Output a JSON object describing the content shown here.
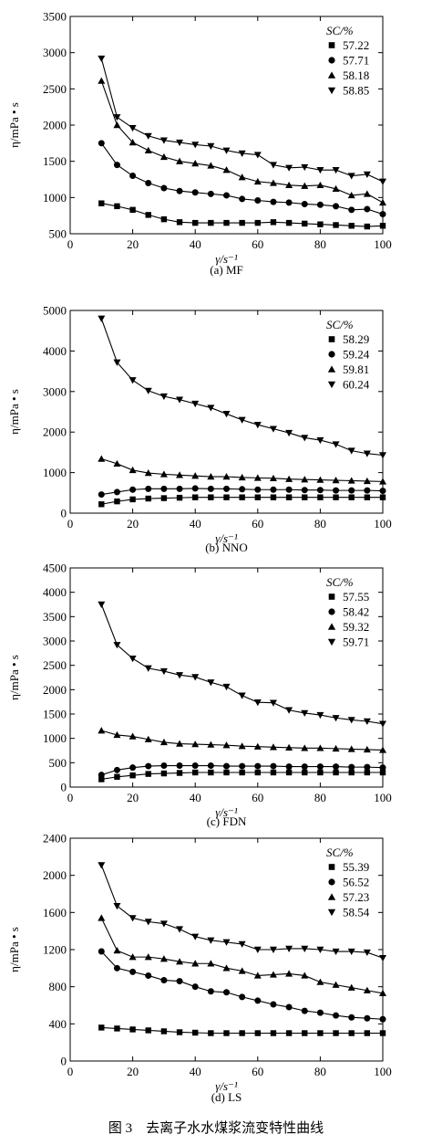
{
  "figure_caption": "图 3　去离子水水煤浆流变特性曲线",
  "chart_data": [
    {
      "type": "line",
      "caption": "(a) MF",
      "xlabel": "γ/s⁻¹",
      "ylabel": "η/mPa • s",
      "xlim": [
        0,
        100
      ],
      "ylim": [
        500,
        3500
      ],
      "xticks": [
        0,
        20,
        40,
        60,
        80,
        100
      ],
      "yticks": [
        500,
        1000,
        1500,
        2000,
        2500,
        3000,
        3500
      ],
      "legend_title": "SC/%",
      "legend_position": "top-right",
      "series": [
        {
          "name": "57.22",
          "marker": "square",
          "x": [
            10,
            15,
            20,
            25,
            30,
            35,
            40,
            45,
            50,
            55,
            60,
            65,
            70,
            75,
            80,
            85,
            90,
            95,
            100
          ],
          "y": [
            920,
            880,
            830,
            760,
            700,
            660,
            650,
            650,
            650,
            650,
            650,
            660,
            650,
            640,
            630,
            620,
            610,
            600,
            610
          ]
        },
        {
          "name": "57.71",
          "marker": "circle",
          "x": [
            10,
            15,
            20,
            25,
            30,
            35,
            40,
            45,
            50,
            55,
            60,
            65,
            70,
            75,
            80,
            85,
            90,
            95,
            100
          ],
          "y": [
            1750,
            1450,
            1300,
            1200,
            1130,
            1090,
            1070,
            1050,
            1030,
            980,
            960,
            940,
            930,
            910,
            900,
            880,
            830,
            840,
            770
          ]
        },
        {
          "name": "58.18",
          "marker": "triangle-up",
          "x": [
            10,
            15,
            20,
            25,
            30,
            35,
            40,
            45,
            50,
            55,
            60,
            65,
            70,
            75,
            80,
            85,
            90,
            95,
            100
          ],
          "y": [
            2610,
            2000,
            1760,
            1650,
            1560,
            1500,
            1470,
            1440,
            1380,
            1280,
            1220,
            1200,
            1170,
            1160,
            1170,
            1120,
            1030,
            1050,
            930
          ]
        },
        {
          "name": "58.85",
          "marker": "triangle-down",
          "x": [
            10,
            15,
            20,
            25,
            30,
            35,
            40,
            45,
            50,
            55,
            60,
            65,
            70,
            75,
            80,
            85,
            90,
            95,
            100
          ],
          "y": [
            2920,
            2110,
            1960,
            1850,
            1790,
            1760,
            1730,
            1710,
            1650,
            1610,
            1590,
            1450,
            1410,
            1420,
            1380,
            1380,
            1300,
            1320,
            1220
          ]
        }
      ]
    },
    {
      "type": "line",
      "caption": "(b) NNO",
      "xlabel": "γ/s⁻¹",
      "ylabel": "η/mPa • s",
      "xlim": [
        0,
        100
      ],
      "ylim": [
        0,
        5000
      ],
      "xticks": [
        0,
        20,
        40,
        60,
        80,
        100
      ],
      "yticks": [
        0,
        1000,
        2000,
        3000,
        4000,
        5000
      ],
      "legend_title": "SC/%",
      "legend_position": "top-right",
      "series": [
        {
          "name": "58.29",
          "marker": "square",
          "x": [
            10,
            15,
            20,
            25,
            30,
            35,
            40,
            45,
            50,
            55,
            60,
            65,
            70,
            75,
            80,
            85,
            90,
            95,
            100
          ],
          "y": [
            220,
            290,
            340,
            360,
            370,
            380,
            390,
            390,
            390,
            390,
            390,
            390,
            390,
            390,
            390,
            390,
            390,
            390,
            390
          ]
        },
        {
          "name": "59.24",
          "marker": "circle",
          "x": [
            10,
            15,
            20,
            25,
            30,
            35,
            40,
            45,
            50,
            55,
            60,
            65,
            70,
            75,
            80,
            85,
            90,
            95,
            100
          ],
          "y": [
            460,
            520,
            580,
            600,
            600,
            600,
            610,
            600,
            600,
            590,
            580,
            580,
            580,
            570,
            570,
            560,
            560,
            560,
            550
          ]
        },
        {
          "name": "59.81",
          "marker": "triangle-up",
          "x": [
            10,
            15,
            20,
            25,
            30,
            35,
            40,
            45,
            50,
            55,
            60,
            65,
            70,
            75,
            80,
            85,
            90,
            95,
            100
          ],
          "y": [
            1340,
            1220,
            1060,
            990,
            960,
            940,
            920,
            900,
            900,
            880,
            870,
            860,
            840,
            830,
            820,
            810,
            800,
            790,
            780
          ]
        },
        {
          "name": "60.24",
          "marker": "triangle-down",
          "x": [
            10,
            15,
            20,
            25,
            30,
            35,
            40,
            45,
            50,
            55,
            60,
            65,
            70,
            75,
            80,
            85,
            90,
            95,
            100
          ],
          "y": [
            4800,
            3720,
            3280,
            3020,
            2880,
            2800,
            2700,
            2600,
            2450,
            2300,
            2180,
            2080,
            1980,
            1860,
            1800,
            1700,
            1540,
            1470,
            1430
          ]
        }
      ]
    },
    {
      "type": "line",
      "caption": "(c) FDN",
      "xlabel": "γ/s⁻¹",
      "ylabel": "η/mPa • s",
      "xlim": [
        0,
        100
      ],
      "ylim": [
        0,
        4500
      ],
      "xticks": [
        0,
        20,
        40,
        60,
        80,
        100
      ],
      "yticks": [
        0,
        500,
        1000,
        1500,
        2000,
        2500,
        3000,
        3500,
        4000,
        4500
      ],
      "legend_title": "SC/%",
      "legend_position": "top-right",
      "series": [
        {
          "name": "57.55",
          "marker": "square",
          "x": [
            10,
            15,
            20,
            25,
            30,
            35,
            40,
            45,
            50,
            55,
            60,
            65,
            70,
            75,
            80,
            85,
            90,
            95,
            100
          ],
          "y": [
            160,
            210,
            240,
            270,
            280,
            290,
            300,
            300,
            300,
            300,
            300,
            300,
            300,
            300,
            300,
            300,
            300,
            300,
            300
          ]
        },
        {
          "name": "58.42",
          "marker": "circle",
          "x": [
            10,
            15,
            20,
            25,
            30,
            35,
            40,
            45,
            50,
            55,
            60,
            65,
            70,
            75,
            80,
            85,
            90,
            95,
            100
          ],
          "y": [
            250,
            350,
            400,
            430,
            440,
            440,
            440,
            440,
            430,
            430,
            430,
            430,
            420,
            420,
            420,
            420,
            410,
            410,
            400
          ]
        },
        {
          "name": "59.32",
          "marker": "triangle-up",
          "x": [
            10,
            15,
            20,
            25,
            30,
            35,
            40,
            45,
            50,
            55,
            60,
            65,
            70,
            75,
            80,
            85,
            90,
            95,
            100
          ],
          "y": [
            1160,
            1070,
            1040,
            980,
            920,
            890,
            880,
            870,
            860,
            840,
            830,
            820,
            810,
            800,
            800,
            790,
            780,
            770,
            760
          ]
        },
        {
          "name": "59.71",
          "marker": "triangle-down",
          "x": [
            10,
            15,
            20,
            25,
            30,
            35,
            40,
            45,
            50,
            55,
            60,
            65,
            70,
            75,
            80,
            85,
            90,
            95,
            100
          ],
          "y": [
            3750,
            2920,
            2640,
            2440,
            2380,
            2300,
            2260,
            2150,
            2060,
            1880,
            1740,
            1730,
            1580,
            1520,
            1480,
            1420,
            1380,
            1350,
            1300
          ]
        }
      ]
    },
    {
      "type": "line",
      "caption": "(d) LS",
      "xlabel": "γ/s⁻¹",
      "ylabel": "η/mPa • s",
      "xlim": [
        0,
        100
      ],
      "ylim": [
        0,
        2400
      ],
      "xticks": [
        0,
        20,
        40,
        60,
        80,
        100
      ],
      "yticks": [
        0,
        400,
        800,
        1200,
        1600,
        2000,
        2400
      ],
      "legend_title": "SC/%",
      "legend_position": "top-right",
      "series": [
        {
          "name": "55.39",
          "marker": "square",
          "x": [
            10,
            15,
            20,
            25,
            30,
            35,
            40,
            45,
            50,
            55,
            60,
            65,
            70,
            75,
            80,
            85,
            90,
            95,
            100
          ],
          "y": [
            360,
            350,
            340,
            330,
            320,
            310,
            305,
            300,
            300,
            300,
            300,
            300,
            300,
            300,
            300,
            300,
            300,
            300,
            300
          ]
        },
        {
          "name": "56.52",
          "marker": "circle",
          "x": [
            10,
            15,
            20,
            25,
            30,
            35,
            40,
            45,
            50,
            55,
            60,
            65,
            70,
            75,
            80,
            85,
            90,
            95,
            100
          ],
          "y": [
            1180,
            1000,
            960,
            920,
            870,
            860,
            800,
            750,
            740,
            690,
            650,
            610,
            580,
            540,
            520,
            490,
            470,
            460,
            450
          ]
        },
        {
          "name": "57.23",
          "marker": "triangle-up",
          "x": [
            10,
            15,
            20,
            25,
            30,
            35,
            40,
            45,
            50,
            55,
            60,
            65,
            70,
            75,
            80,
            85,
            90,
            95,
            100
          ],
          "y": [
            1540,
            1190,
            1120,
            1120,
            1100,
            1070,
            1050,
            1050,
            1000,
            970,
            920,
            930,
            940,
            920,
            850,
            820,
            790,
            760,
            730
          ]
        },
        {
          "name": "58.54",
          "marker": "triangle-down",
          "x": [
            10,
            15,
            20,
            25,
            30,
            35,
            40,
            45,
            50,
            55,
            60,
            65,
            70,
            75,
            80,
            85,
            90,
            95,
            100
          ],
          "y": [
            2110,
            1670,
            1540,
            1500,
            1480,
            1420,
            1340,
            1300,
            1280,
            1260,
            1200,
            1200,
            1210,
            1210,
            1200,
            1180,
            1180,
            1170,
            1110
          ]
        }
      ]
    }
  ]
}
